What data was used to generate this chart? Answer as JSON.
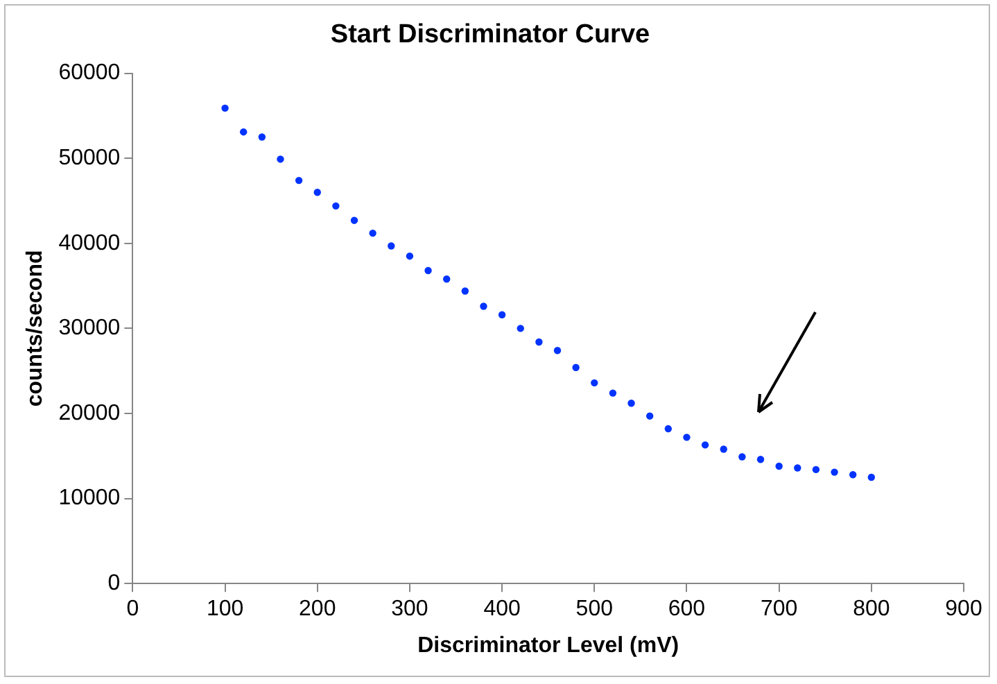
{
  "chart_data": {
    "type": "scatter",
    "title": "Start Discriminator Curve",
    "xlabel": "Discriminator Level (mV)",
    "ylabel": "counts/second",
    "x": [
      100,
      120,
      140,
      160,
      180,
      200,
      220,
      240,
      260,
      280,
      300,
      320,
      340,
      360,
      380,
      400,
      420,
      440,
      460,
      480,
      500,
      520,
      540,
      560,
      580,
      600,
      620,
      640,
      660,
      680,
      700,
      720,
      740,
      760,
      780,
      800
    ],
    "series": [
      {
        "color": "#0033ff",
        "values": [
          55900,
          53100,
          52500,
          49900,
          47400,
          46000,
          44400,
          42700,
          41200,
          39700,
          38500,
          36800,
          35800,
          34400,
          32600,
          31600,
          30000,
          28400,
          27400,
          25400,
          23600,
          22400,
          21200,
          19700,
          18200,
          17200,
          16300,
          15800,
          14900,
          14600,
          13800,
          13600,
          13400,
          13100,
          12800,
          12500
        ]
      }
    ],
    "xlim": [
      0,
      900
    ],
    "xticks": [
      0,
      100,
      200,
      300,
      400,
      500,
      600,
      700,
      800,
      900
    ],
    "ylim": [
      0,
      60000
    ],
    "yticks": [
      0,
      10000,
      20000,
      30000,
      40000,
      50000,
      60000
    ],
    "grid": false,
    "legend": false,
    "marker": "circle"
  }
}
